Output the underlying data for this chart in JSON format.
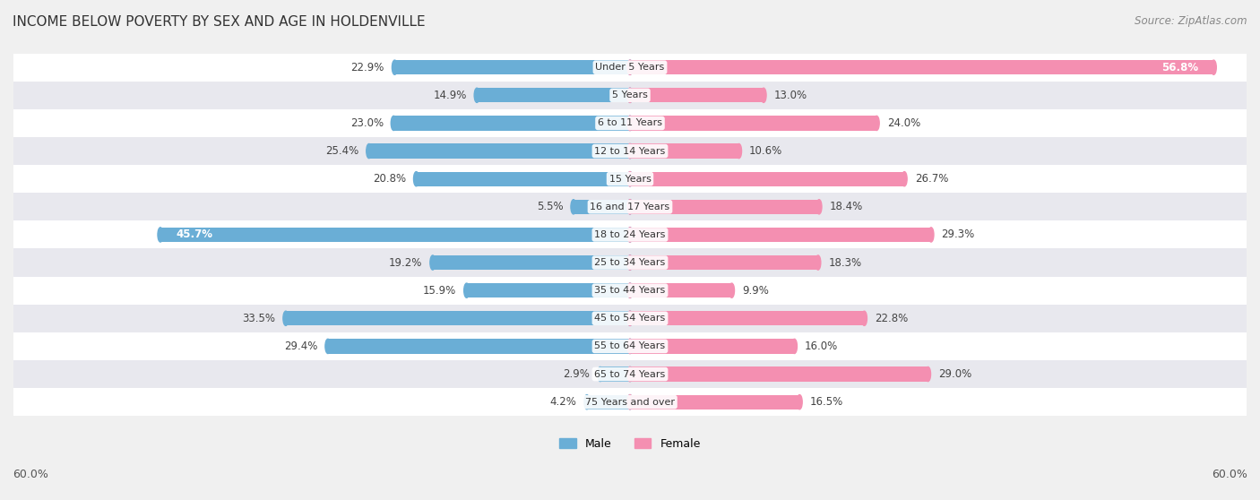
{
  "title": "INCOME BELOW POVERTY BY SEX AND AGE IN HOLDENVILLE",
  "source": "Source: ZipAtlas.com",
  "categories": [
    "Under 5 Years",
    "5 Years",
    "6 to 11 Years",
    "12 to 14 Years",
    "15 Years",
    "16 and 17 Years",
    "18 to 24 Years",
    "25 to 34 Years",
    "35 to 44 Years",
    "45 to 54 Years",
    "55 to 64 Years",
    "65 to 74 Years",
    "75 Years and over"
  ],
  "male_values": [
    22.9,
    14.9,
    23.0,
    25.4,
    20.8,
    5.5,
    45.7,
    19.2,
    15.9,
    33.5,
    29.4,
    2.9,
    4.2
  ],
  "female_values": [
    56.8,
    13.0,
    24.0,
    10.6,
    26.7,
    18.4,
    29.3,
    18.3,
    9.9,
    22.8,
    16.0,
    29.0,
    16.5
  ],
  "male_color": "#6aaed6",
  "female_color": "#f48fb1",
  "background_color": "#f0f0f0",
  "row_bg_white": "#ffffff",
  "row_bg_gray": "#e8e8ee",
  "axis_limit": 60.0,
  "bar_height": 0.52,
  "inside_label_threshold": 35.0,
  "label_fontsize": 8.5,
  "title_fontsize": 11,
  "source_fontsize": 8.5
}
